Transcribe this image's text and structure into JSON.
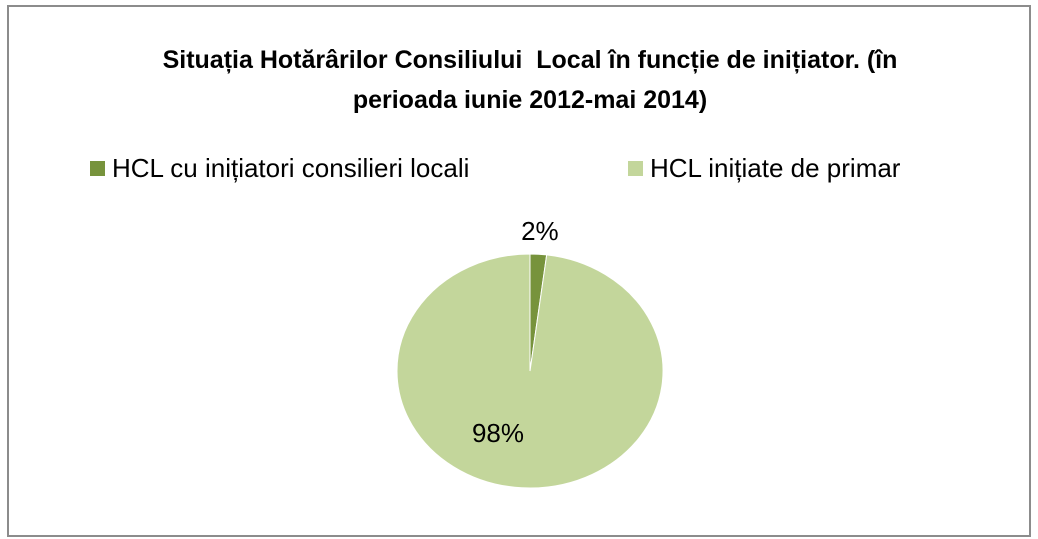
{
  "chart_data": {
    "type": "pie",
    "title": "Situația Hotărârilor Consiliului  Local în funcție de inițiator. (în perioada iunie 2012-mai 2014)",
    "categories": [
      "HCL cu inițiatori consilieri locali",
      "HCL inițiate de primar"
    ],
    "values": [
      2,
      98
    ],
    "value_labels": [
      "2%",
      "98%"
    ],
    "colors": [
      "#77933c",
      "#c3d69b"
    ],
    "legend": "top"
  }
}
